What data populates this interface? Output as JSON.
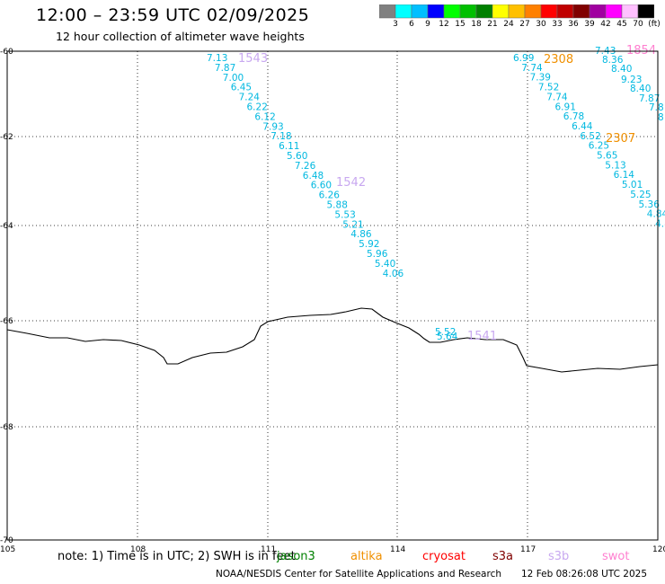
{
  "header": {
    "title": "12:00 – 23:59 UTC 02/09/2025",
    "subtitle": "12 hour collection of altimeter wave heights"
  },
  "color_scale": {
    "colors": [
      "#808080",
      "#00ffff",
      "#00bfff",
      "#0000ff",
      "#00ff00",
      "#00c000",
      "#008000",
      "#ffff00",
      "#ffc000",
      "#ff8000",
      "#ff0000",
      "#c00000",
      "#800000",
      "#a000a0",
      "#ff00ff",
      "#ffc0ff",
      "#000000"
    ],
    "labels": [
      "3",
      "6",
      "9",
      "12",
      "15",
      "18",
      "21",
      "24",
      "27",
      "30",
      "33",
      "36",
      "39",
      "42",
      "45",
      "70",
      "(ft)"
    ]
  },
  "axes": {
    "x_ticks": [
      "105",
      "108",
      "111",
      "114",
      "117",
      "120"
    ],
    "y_ticks": [
      "-60",
      "-62",
      "-64",
      "-66",
      "-68",
      "-70"
    ]
  },
  "tracks": [
    {
      "id": "1543",
      "id_color": "#c8a8f0",
      "values_color": "#00b8e0",
      "values": [
        "7.13",
        "7.87",
        "7.00",
        "6.45",
        "7.24",
        "6.22",
        "6.12",
        "7.93",
        "7.18",
        "6.11",
        "5.60",
        "7.26",
        "6.48",
        "6.60",
        "6.26",
        "5.88",
        "5.53",
        "5.21",
        "4.86",
        "5.92",
        "5.96",
        "5.40",
        "4.06"
      ]
    },
    {
      "id": "1542",
      "id_color": "#c8a8f0"
    },
    {
      "id": "1541",
      "id_color": "#c8a8f0",
      "values_color": "#00b8e0",
      "values": [
        "5.52",
        "5.64"
      ]
    },
    {
      "id": "2308",
      "id_color": "#f09000",
      "values_color": "#00b8e0",
      "values": [
        "6.99",
        "7.74",
        "7.39",
        "7.52",
        "7.74",
        "6.91",
        "6.78",
        "6.44",
        "6.52",
        "6.25",
        "5.65",
        "5.13",
        "6.14",
        "5.01",
        "5.25",
        "5.36",
        "4.84",
        "4.8"
      ]
    },
    {
      "id": "2307",
      "id_color": "#f09000"
    },
    {
      "id": "1854",
      "id_color": "#ff80d0",
      "values_color": "#00b8e0",
      "values": [
        "7.43",
        "8.36",
        "8.40",
        "9.23",
        "8.40",
        "7.87",
        "7.8",
        "8"
      ]
    }
  ],
  "footer": {
    "note": "note: 1) Time is in UTC; 2) SWH is in feet",
    "satellites": [
      {
        "name": "jason3",
        "color": "#008000"
      },
      {
        "name": "altika",
        "color": "#f09000"
      },
      {
        "name": "cryosat",
        "color": "#ff0000"
      },
      {
        "name": "s3a",
        "color": "#800000"
      },
      {
        "name": "s3b",
        "color": "#c8a8f0"
      },
      {
        "name": "swot",
        "color": "#ff80d0"
      }
    ],
    "credit": "NOAA/NESDIS Center for Satellite Applications and Research",
    "timestamp": "12 Feb 08:26:08 UTC 2025"
  }
}
